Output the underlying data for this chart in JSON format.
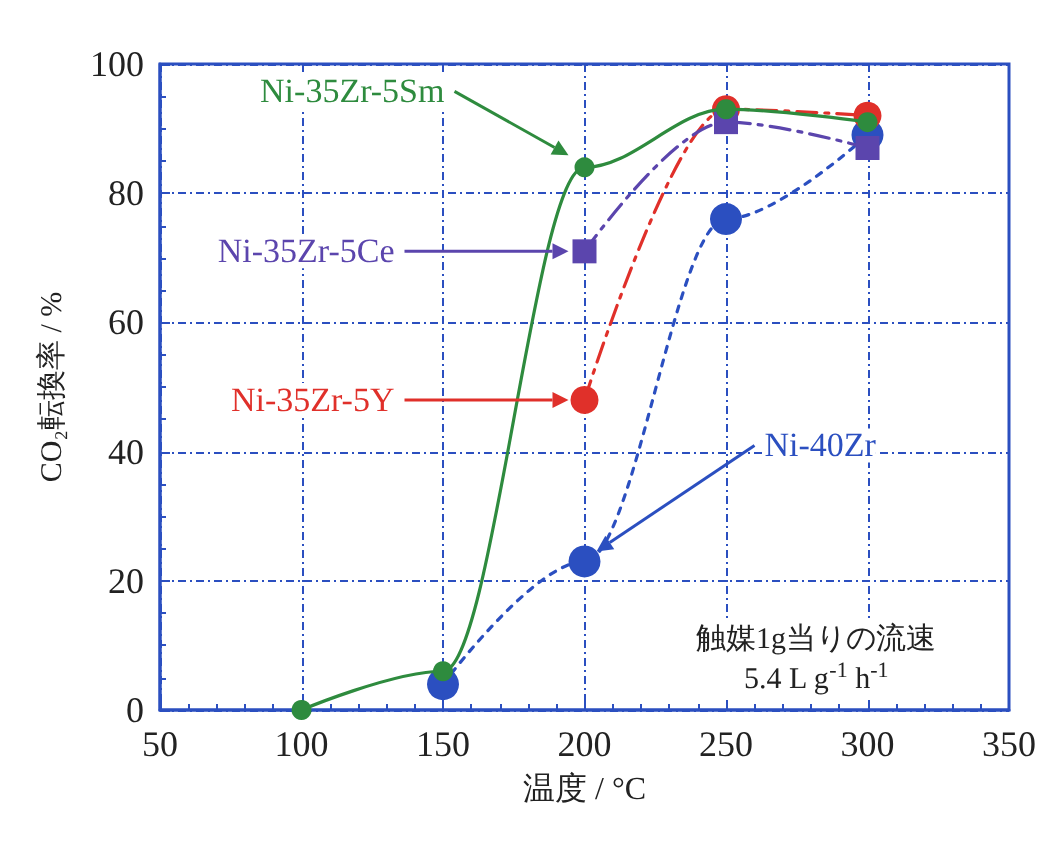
{
  "chart_data": {
    "type": "line",
    "x": [
      100,
      150,
      200,
      250,
      300
    ],
    "series": [
      {
        "name": "Ni-35Zr-5Sm",
        "color": "#2e8b3e",
        "values": [
          0,
          6,
          84,
          93,
          91
        ],
        "marker": "circle",
        "line_style": "solid"
      },
      {
        "name": "Ni-35Zr-5Ce",
        "color": "#5b45ad",
        "values": [
          null,
          null,
          71,
          91,
          87
        ],
        "marker": "square",
        "line_style": "dashed"
      },
      {
        "name": "Ni-35Zr-5Y",
        "color": "#e0302a",
        "values": [
          null,
          null,
          48,
          93,
          92
        ],
        "marker": "circle",
        "line_style": "dashed"
      },
      {
        "name": "Ni-40Zr",
        "color": "#2b4fc0",
        "values": [
          null,
          4,
          23,
          76,
          89
        ],
        "marker": "circle",
        "line_style": "dotted"
      }
    ],
    "xlabel": "温度 / °C",
    "ylabel": "CO₂転換率 / %",
    "xlim": [
      50,
      350
    ],
    "xticks": [
      50,
      100,
      150,
      200,
      250,
      300,
      350
    ],
    "ylim": [
      0,
      100
    ],
    "yticks": [
      0,
      20,
      40,
      60,
      80,
      100
    ],
    "grid": true,
    "legend": "left",
    "annotations": [
      "触媒1g当りの流速\n5.4 L g$^{-1}$ h$^{-1}$"
    ]
  }
}
